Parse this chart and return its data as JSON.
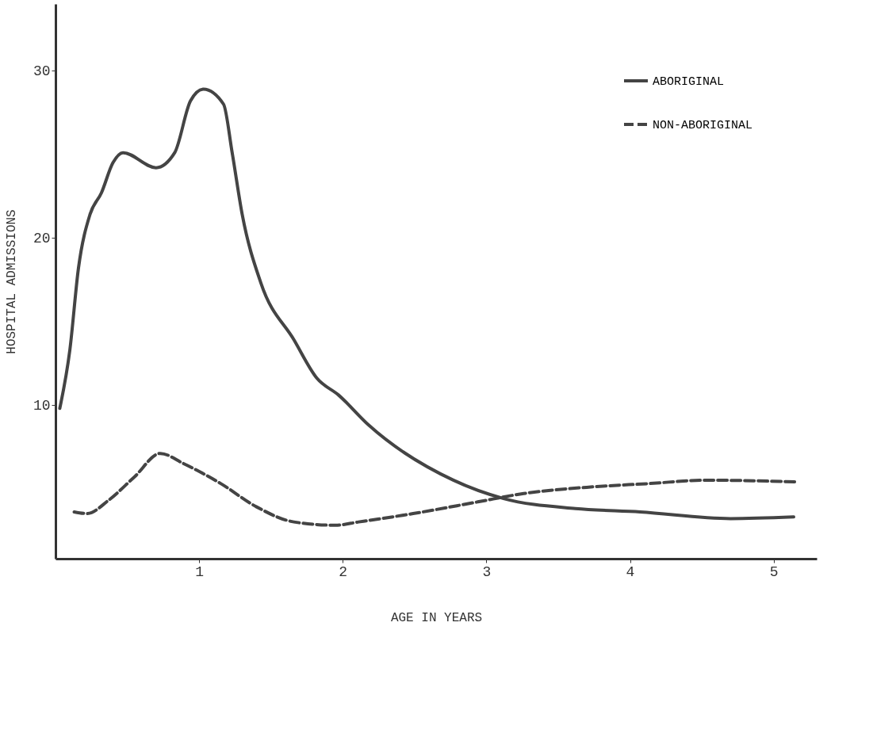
{
  "chart_data": {
    "type": "line",
    "xlabel": "AGE   IN   YEARS",
    "ylabel": "HOSPITAL   ADMISSIONS",
    "xlim": [
      0,
      5.3
    ],
    "ylim": [
      0.8,
      34
    ],
    "xticks": [
      1,
      2,
      3,
      4,
      5
    ],
    "yticks": [
      10,
      20,
      30
    ],
    "grid": false,
    "legend": "top right",
    "marker": "none",
    "series": [
      {
        "name": "ABORIGINAL",
        "color": "#444444",
        "line_style": "solid",
        "x": [
          0.03,
          0.1,
          0.16,
          0.24,
          0.32,
          0.4,
          0.47,
          0.7,
          0.83,
          0.94,
          1.03,
          1.17,
          1.23,
          1.3,
          1.43,
          1.66,
          1.82,
          1.97,
          2.18,
          2.77,
          3.12,
          3.62,
          4.07,
          4.7,
          5.14
        ],
        "values": [
          9.8,
          13.3,
          18.2,
          21.4,
          22.7,
          24.5,
          25.1,
          24.2,
          25.1,
          28.2,
          28.9,
          28.0,
          25.1,
          21.4,
          17.3,
          13.9,
          11.6,
          10.6,
          8.8,
          5.5,
          4.4,
          3.8,
          3.6,
          3.2,
          3.3
        ]
      },
      {
        "name": "NON-ABORIGINAL",
        "color": "#444444",
        "line_style": "dashed",
        "x": [
          0.13,
          0.22,
          0.37,
          0.55,
          0.73,
          0.89,
          1.15,
          1.4,
          1.66,
          1.95,
          2.11,
          2.49,
          2.94,
          3.26,
          3.74,
          4.14,
          4.52,
          5.15
        ],
        "values": [
          3.6,
          3.5,
          4.3,
          5.7,
          7.1,
          6.5,
          5.3,
          3.9,
          3.0,
          2.8,
          3.0,
          3.5,
          4.2,
          4.7,
          5.1,
          5.3,
          5.5,
          5.4
        ]
      }
    ]
  }
}
